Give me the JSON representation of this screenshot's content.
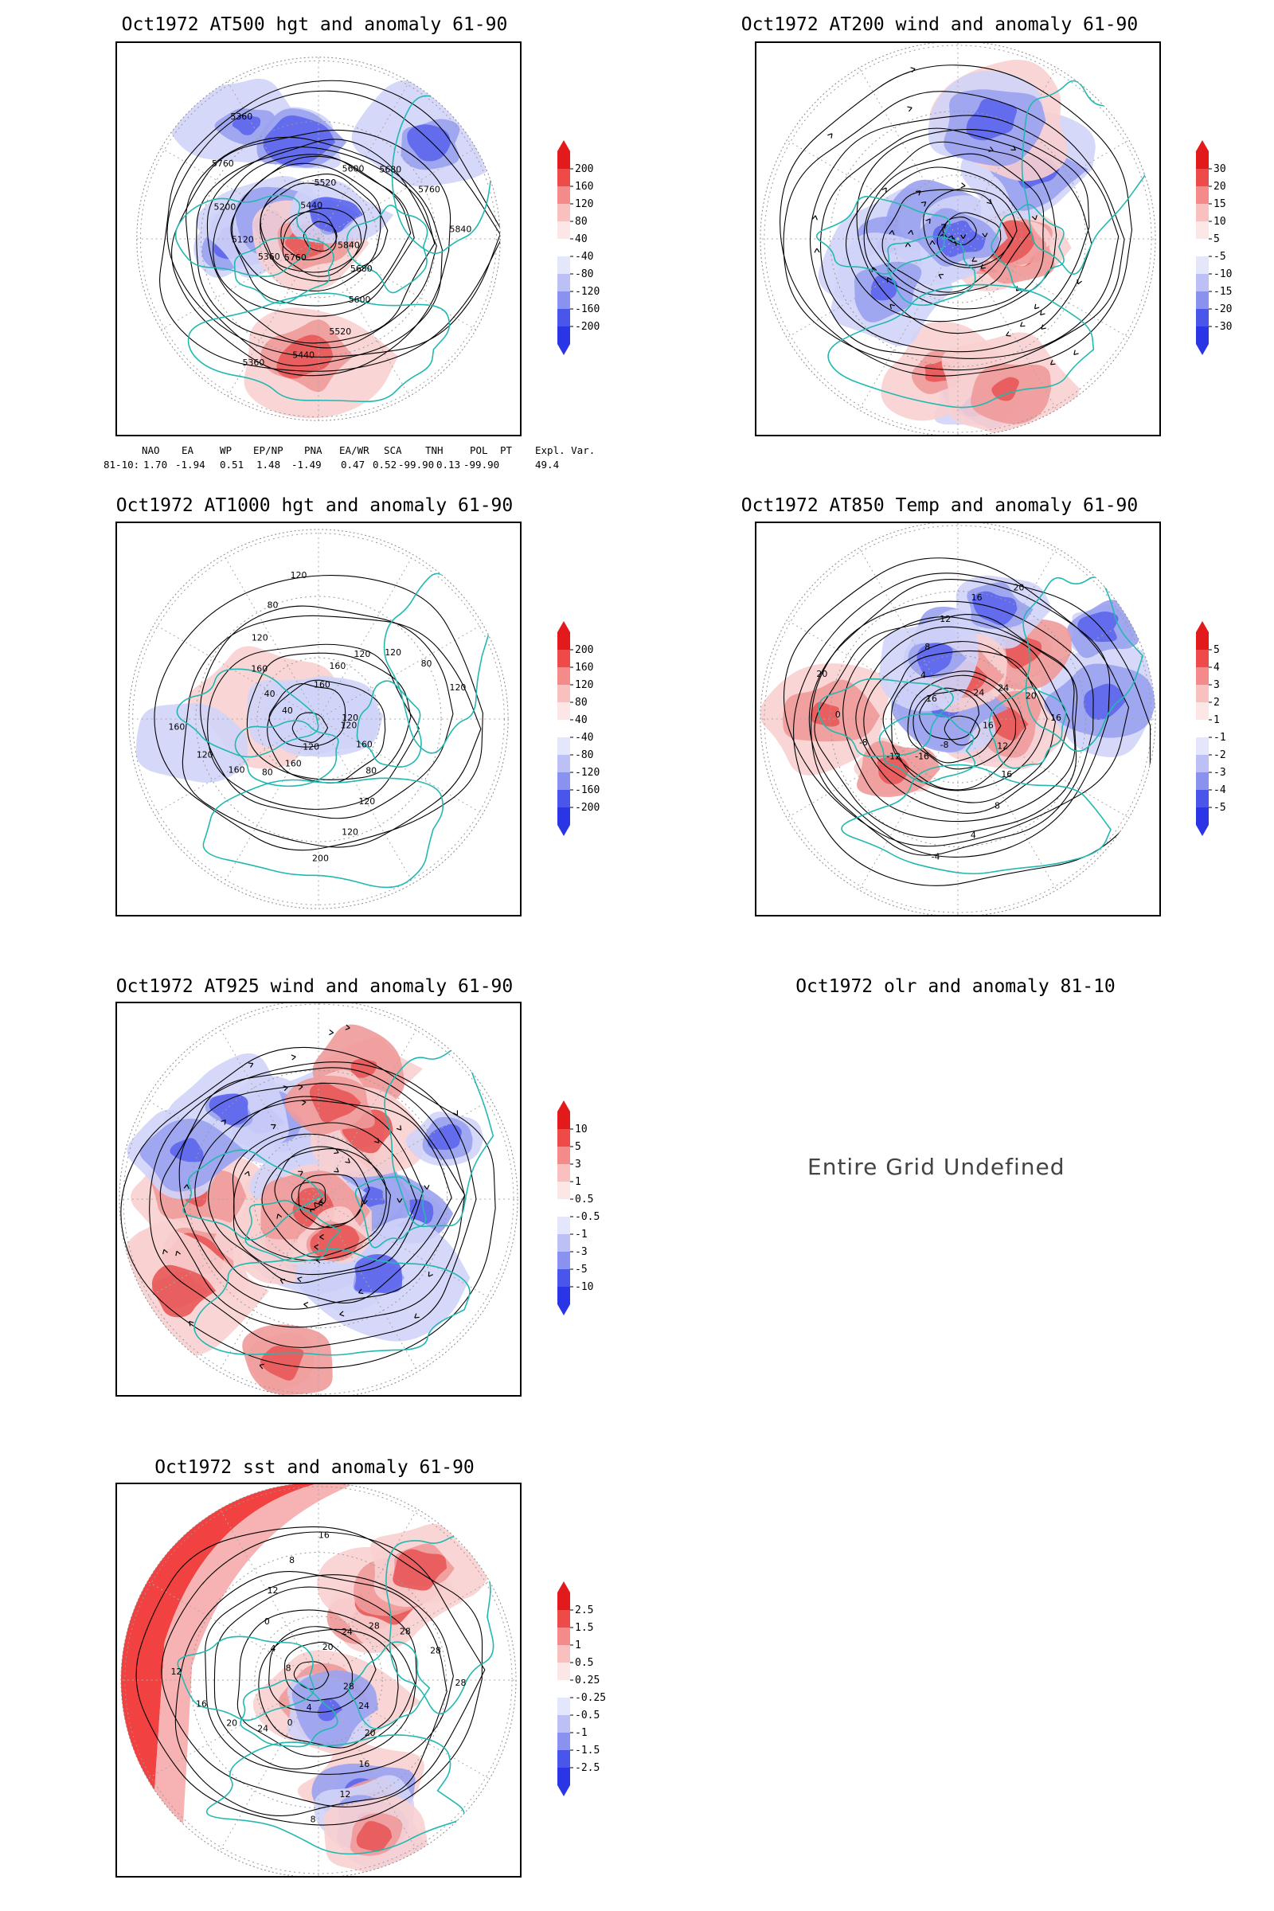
{
  "panels": [
    {
      "id": "p1",
      "title": "Oct1972 AT500 hgt and anomaly 61-90",
      "kind": "hgt500",
      "contour_labels": [
        "5840",
        "5680",
        "5600",
        "5520",
        "5440",
        "5360",
        "5760",
        "5360",
        "5120",
        "5200",
        "5760",
        "5360",
        "5440",
        "5520",
        "5600",
        "5680",
        "5760",
        "5840"
      ],
      "colorbar": [
        "200",
        "160",
        "120",
        "80",
        "40",
        "-40",
        "-80",
        "-120",
        "-160",
        "-200"
      ]
    },
    {
      "id": "p2",
      "title": "Oct1972 AT200 wind and anomaly 61-90",
      "kind": "wind200",
      "contour_labels": [],
      "colorbar": [
        "30",
        "20",
        "15",
        "10",
        "5",
        "-5",
        "-10",
        "-15",
        "-20",
        "-30"
      ]
    },
    {
      "id": "p3",
      "title": "Oct1972 AT1000 hgt and anomaly 61-90",
      "kind": "hgt1000",
      "contour_labels": [
        "120",
        "160",
        "80",
        "120",
        "120",
        "200",
        "120",
        "160",
        "80",
        "160",
        "120",
        "160",
        "40",
        "40",
        "160",
        "120",
        "80",
        "120",
        "160",
        "160",
        "120",
        "120",
        "80",
        "120",
        "120"
      ],
      "colorbar": [
        "200",
        "160",
        "120",
        "80",
        "40",
        "-40",
        "-80",
        "-120",
        "-160",
        "-200"
      ]
    },
    {
      "id": "p4",
      "title": "Oct1972 AT850 Temp and anomaly 61-90",
      "kind": "temp850",
      "contour_labels": [
        "16",
        "12",
        "16",
        "8",
        "4",
        "-4",
        "-8",
        "-16",
        "-12",
        "-8",
        "0",
        "20",
        "16",
        "4",
        "8",
        "12",
        "16",
        "20",
        "24",
        "24",
        "20",
        "16"
      ],
      "colorbar": [
        "5",
        "4",
        "3",
        "2",
        "1",
        "-1",
        "-2",
        "-3",
        "-4",
        "-5"
      ]
    },
    {
      "id": "p5",
      "title": "Oct1972 AT925 wind and anomaly 61-90",
      "kind": "wind925",
      "contour_labels": [],
      "colorbar": [
        "10",
        "5",
        "3",
        "1",
        "0.5",
        "-0.5",
        "-1",
        "-3",
        "-5",
        "-10"
      ]
    },
    {
      "id": "p6",
      "title": "Oct1972 olr and anomaly 81-10",
      "kind": "olr",
      "message": "Entire Grid Undefined"
    },
    {
      "id": "p7",
      "title": "Oct1972 sst and anomaly 61-90",
      "kind": "sst",
      "contour_labels": [
        "28",
        "24",
        "20",
        "16",
        "12",
        "8",
        "4",
        "0",
        "24",
        "20",
        "16",
        "12",
        "8",
        "4",
        "0",
        "12",
        "8",
        "16",
        "20",
        "24",
        "28",
        "28",
        "28",
        "28"
      ],
      "colorbar": [
        "2.5",
        "1.5",
        "1",
        "0.5",
        "0.25",
        "-0.25",
        "-0.5",
        "-1",
        "-1.5",
        "-2.5"
      ]
    }
  ],
  "teleconnections": {
    "headers": [
      "NAO",
      "EA",
      "WP",
      "EP/NP",
      "PNA",
      "EA/WR",
      "SCA",
      "TNH",
      "POL",
      "PT",
      "Expl. Var."
    ],
    "row_label": "81-10:",
    "values": [
      "1.70",
      "-1.94",
      "0.51",
      "1.48",
      "-1.49",
      "0.47",
      "0.52",
      "-99.90",
      "0.13",
      "-99.90",
      "49.4"
    ]
  },
  "colors": {
    "coast": "#22b8b0",
    "pos": "#ee2020",
    "neg": "#2d3cf0",
    "contour": "#000000"
  }
}
